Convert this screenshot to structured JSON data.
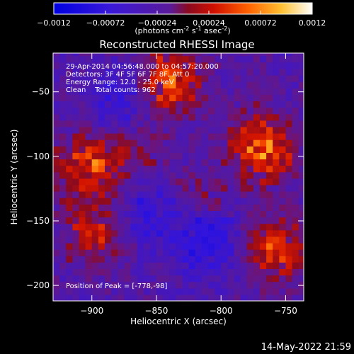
{
  "colorbar": {
    "ticks": [
      "-0.0012",
      "-0.00072",
      "-0.00024",
      "0.00024",
      "0.00072",
      "0.0012"
    ],
    "units_prefix": "(photons cm",
    "units_exp1": "-2",
    "units_mid": " s",
    "units_exp2": "-1",
    "units_mid2": " asec",
    "units_exp3": "-2",
    "units_suffix": ")",
    "min": -0.0012,
    "max": 0.0012
  },
  "annotations": {
    "time_range": "29-Apr-2014 04:56:48.000 to 04:57:20.000",
    "detectors": "Detectors: 3F 4F 5F 6F 7F 8F, Att 0",
    "energy": "Energy Range: 12.0 - 25.0 keV",
    "clean": "Clean    Total counts: 962",
    "peak": "Position of Peak = [-778,-98]"
  },
  "footer": {
    "timestamp": "14-May-2022 21:59"
  },
  "chart_data": {
    "type": "heatmap",
    "title": "Reconstructed RHESSI Image",
    "xlabel": "Heliocentric X (arcsec)",
    "ylabel": "Heliocentric Y (arcsec)",
    "xlim": [
      -930,
      -736
    ],
    "ylim": [
      -212,
      -20
    ],
    "x_ticks": [
      -900,
      -850,
      -800,
      -750
    ],
    "y_ticks": [
      -200,
      -150,
      -100,
      -50
    ],
    "x_tick_labels": [
      "−900",
      "−850",
      "−800",
      "−750"
    ],
    "y_tick_labels": [
      "−200",
      "−150",
      "−100",
      "−50"
    ],
    "colormap": "RHESSI hot-blue (blue → purple → red → orange → yellow → white)",
    "value_range": [
      -0.0012,
      0.0012
    ],
    "peak": [
      -778,
      -98
    ],
    "bright_regions": [
      {
        "x": -842,
        "y": -45,
        "level": 0.55
      },
      {
        "x": -770,
        "y": -95,
        "level": 0.6
      },
      {
        "x": -905,
        "y": -110,
        "level": 0.5
      },
      {
        "x": -900,
        "y": -160,
        "level": 0.4
      },
      {
        "x": -760,
        "y": -175,
        "level": 0.45
      },
      {
        "x": -820,
        "y": -140,
        "level": 0.25
      },
      {
        "x": -870,
        "y": -100,
        "level": 0.2
      }
    ],
    "dim_regions": [
      {
        "x": -815,
        "y": -165,
        "level": -0.5
      },
      {
        "x": -860,
        "y": -145,
        "level": -0.35
      },
      {
        "x": -880,
        "y": -60,
        "level": -0.3
      }
    ]
  }
}
